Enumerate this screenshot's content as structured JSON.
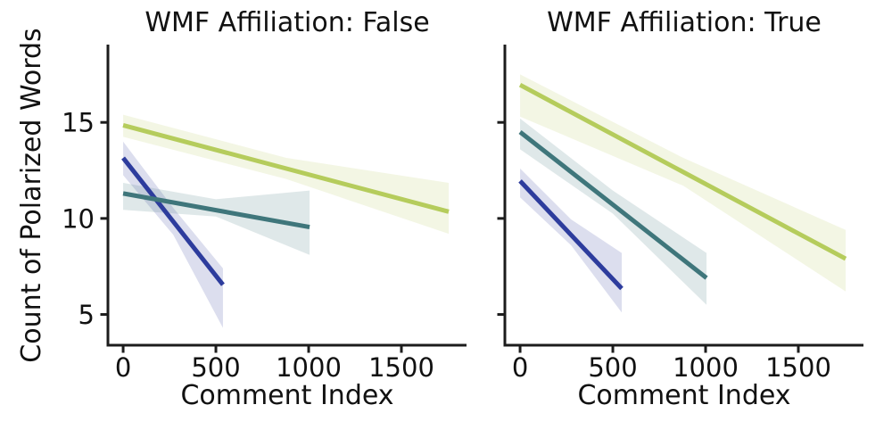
{
  "figure": {
    "background": "#ffffff",
    "axis_color": "#1c1c1c",
    "text_color": "#111111",
    "band_opacity": 0.17
  },
  "chart_data": [
    {
      "type": "line",
      "title": "WMF Affiliation: False",
      "xlabel": "Comment Index",
      "ylabel": "Count of Polarized Words",
      "xlim": [
        -82,
        1851
      ],
      "ylim": [
        3.4,
        19.05
      ],
      "xticks": [
        0,
        500,
        1000,
        1500
      ],
      "yticks": [
        5,
        10,
        15
      ],
      "show_ytick_labels": true,
      "grid": false,
      "legend": "none",
      "series": [
        {
          "name": "group-blue",
          "color": "#2d3c9d",
          "line": {
            "x": [
              0,
              538
            ],
            "y": [
              13.15,
              6.55
            ]
          },
          "band": {
            "x": [
              0,
              270,
              538
            ],
            "upper": [
              14.0,
              10.55,
              7.4
            ],
            "lower": [
              12.25,
              9.15,
              4.3
            ]
          }
        },
        {
          "name": "group-teal",
          "color": "#3f767b",
          "line": {
            "x": [
              0,
              1005
            ],
            "y": [
              11.3,
              9.55
            ]
          },
          "band": {
            "x": [
              0,
              500,
              1005
            ],
            "upper": [
              11.85,
              11.0,
              11.45
            ],
            "lower": [
              10.45,
              10.1,
              8.1
            ]
          }
        },
        {
          "name": "group-green",
          "color": "#b5cc5c",
          "line": {
            "x": [
              0,
              1755
            ],
            "y": [
              14.85,
              10.35
            ]
          },
          "band": {
            "x": [
              0,
              880,
              1755
            ],
            "upper": [
              15.4,
              13.15,
              11.85
            ],
            "lower": [
              14.25,
              12.05,
              9.2
            ]
          }
        }
      ]
    },
    {
      "type": "line",
      "title": "WMF Affiliation: True",
      "xlabel": "Comment Index",
      "ylabel": "",
      "xlim": [
        -82,
        1851
      ],
      "ylim": [
        3.4,
        19.05
      ],
      "xticks": [
        0,
        500,
        1000,
        1500
      ],
      "yticks": [
        5,
        10,
        15
      ],
      "show_ytick_labels": false,
      "grid": false,
      "legend": "none",
      "series": [
        {
          "name": "group-blue",
          "color": "#2d3c9d",
          "line": {
            "x": [
              0,
              548
            ],
            "y": [
              11.95,
              6.35
            ]
          },
          "band": {
            "x": [
              0,
              275,
              548
            ],
            "upper": [
              12.6,
              9.95,
              8.2
            ],
            "lower": [
              11.1,
              8.6,
              5.1
            ]
          }
        },
        {
          "name": "group-teal",
          "color": "#3f767b",
          "line": {
            "x": [
              0,
              1005
            ],
            "y": [
              14.5,
              6.9
            ]
          },
          "band": {
            "x": [
              0,
              500,
              1005
            ],
            "upper": [
              15.2,
              11.45,
              8.2
            ],
            "lower": [
              13.6,
              10.25,
              5.5
            ]
          }
        },
        {
          "name": "group-green",
          "color": "#b5cc5c",
          "line": {
            "x": [
              0,
              1755
            ],
            "y": [
              16.95,
              7.9
            ]
          },
          "band": {
            "x": [
              0,
              880,
              1755
            ],
            "upper": [
              17.5,
              13.15,
              9.4
            ],
            "lower": [
              15.3,
              11.7,
              6.2
            ]
          }
        }
      ]
    }
  ]
}
